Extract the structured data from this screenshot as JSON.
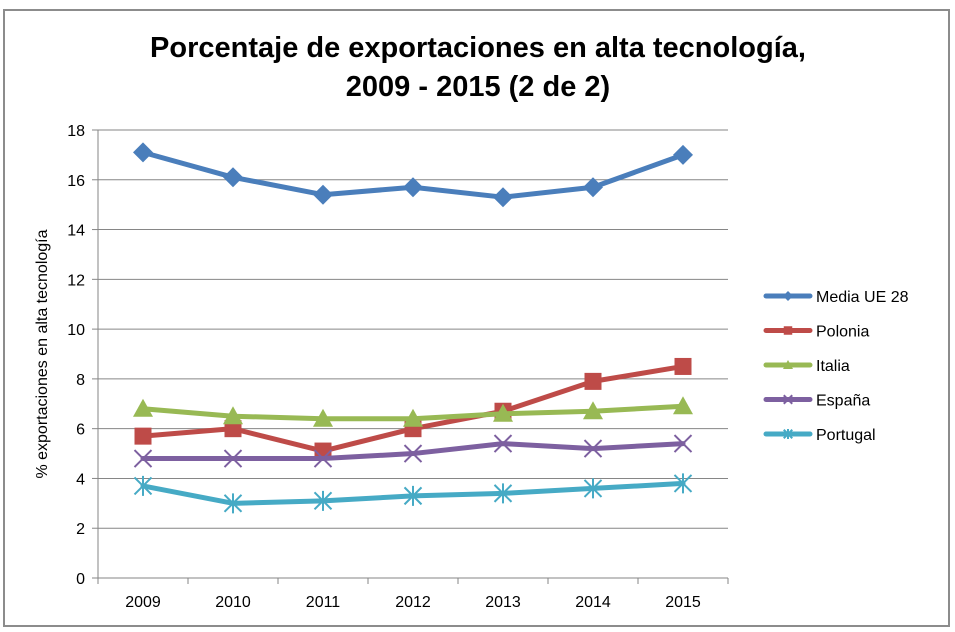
{
  "chart_data": {
    "type": "line",
    "title": "Porcentaje de exportaciones en alta tecnología,",
    "subtitle": "2009 - 2015 (2 de 2)",
    "xlabel": "",
    "ylabel": "% exportaciones en alta tecnología",
    "categories": [
      "2009",
      "2010",
      "2011",
      "2012",
      "2013",
      "2014",
      "2015"
    ],
    "ylim": [
      0,
      18
    ],
    "yticks": [
      "0",
      "2",
      "4",
      "6",
      "8",
      "10",
      "12",
      "14",
      "16",
      "18"
    ],
    "grid": true,
    "legend_position": "right",
    "series": [
      {
        "name": "Media UE 28",
        "color": "#4a7ebb",
        "marker": "diamond",
        "values": [
          17.1,
          16.1,
          15.4,
          15.7,
          15.3,
          15.7,
          17.0
        ]
      },
      {
        "name": "Polonia",
        "color": "#be4b48",
        "marker": "square",
        "values": [
          5.7,
          6.0,
          5.1,
          6.0,
          6.7,
          7.9,
          8.5
        ]
      },
      {
        "name": "Italia",
        "color": "#98b954",
        "marker": "triangle",
        "values": [
          6.8,
          6.5,
          6.4,
          6.4,
          6.6,
          6.7,
          6.9
        ]
      },
      {
        "name": "España",
        "color": "#7d60a0",
        "marker": "x",
        "values": [
          4.8,
          4.8,
          4.8,
          5.0,
          5.4,
          5.2,
          5.4
        ]
      },
      {
        "name": "Portugal",
        "color": "#46aac5",
        "marker": "star",
        "values": [
          3.7,
          3.0,
          3.1,
          3.3,
          3.4,
          3.6,
          3.8
        ]
      }
    ]
  }
}
